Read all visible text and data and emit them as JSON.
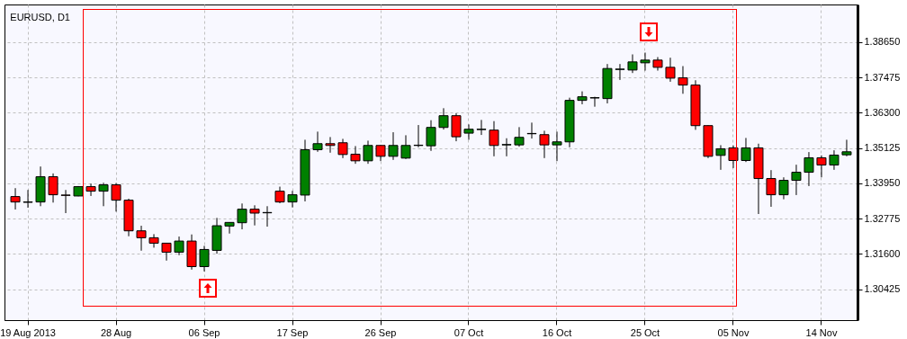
{
  "chart_data": {
    "type": "candlestick",
    "title": "EURUSD, D1",
    "categories": [
      null,
      "19 Aug 2013",
      null,
      null,
      null,
      null,
      null,
      null,
      "28 Aug",
      null,
      null,
      null,
      null,
      null,
      null,
      "06 Sep",
      null,
      null,
      null,
      null,
      null,
      null,
      "17 Sep",
      null,
      null,
      null,
      null,
      null,
      null,
      "26 Sep",
      null,
      null,
      null,
      null,
      null,
      null,
      "07 Oct",
      null,
      null,
      null,
      null,
      null,
      null,
      "16 Oct",
      null,
      null,
      null,
      null,
      null,
      null,
      "25 Oct",
      null,
      null,
      null,
      null,
      null,
      null,
      "05 Nov",
      null,
      null,
      null,
      null,
      null,
      null,
      "14 Nov",
      null,
      null
    ],
    "ohlc": [
      [
        1.3351,
        1.3379,
        1.3308,
        1.3333
      ],
      [
        1.3332,
        1.3373,
        1.3314,
        1.3333
      ],
      [
        1.3333,
        1.3451,
        1.3319,
        1.3417
      ],
      [
        1.3417,
        1.3428,
        1.3331,
        1.3357
      ],
      [
        1.3356,
        1.3373,
        1.3296,
        1.3355
      ],
      [
        1.3353,
        1.3386,
        1.3352,
        1.3384
      ],
      [
        1.3384,
        1.3394,
        1.3353,
        1.3369
      ],
      [
        1.3369,
        1.3397,
        1.3319,
        1.339
      ],
      [
        1.339,
        1.3396,
        1.3301,
        1.3339
      ],
      [
        1.3339,
        1.3344,
        1.3219,
        1.3237
      ],
      [
        1.3237,
        1.3254,
        1.3171,
        1.3214
      ],
      [
        1.3214,
        1.3226,
        1.3181,
        1.3196
      ],
      [
        1.3196,
        1.3197,
        1.3138,
        1.3166
      ],
      [
        1.3166,
        1.3218,
        1.3156,
        1.3203
      ],
      [
        1.3203,
        1.3225,
        1.3108,
        1.3118
      ],
      [
        1.3118,
        1.3187,
        1.3102,
        1.3175
      ],
      [
        1.3172,
        1.328,
        1.3161,
        1.3254
      ],
      [
        1.3253,
        1.3266,
        1.3228,
        1.3265
      ],
      [
        1.3264,
        1.3328,
        1.3242,
        1.3309
      ],
      [
        1.3309,
        1.3322,
        1.3255,
        1.3296
      ],
      [
        1.3297,
        1.3319,
        1.3251,
        1.3298
      ],
      [
        1.3369,
        1.3384,
        1.3329,
        1.3333
      ],
      [
        1.3333,
        1.337,
        1.3315,
        1.3357
      ],
      [
        1.3356,
        1.354,
        1.3335,
        1.3507
      ],
      [
        1.3507,
        1.3567,
        1.35,
        1.3527
      ],
      [
        1.3527,
        1.3549,
        1.3497,
        1.3521
      ],
      [
        1.353,
        1.3543,
        1.3479,
        1.3491
      ],
      [
        1.3492,
        1.3519,
        1.346,
        1.347
      ],
      [
        1.347,
        1.3537,
        1.346,
        1.3521
      ],
      [
        1.3521,
        1.3522,
        1.3469,
        1.3485
      ],
      [
        1.3485,
        1.3565,
        1.3473,
        1.3521
      ],
      [
        1.3479,
        1.3555,
        1.3476,
        1.3521
      ],
      [
        1.3521,
        1.3589,
        1.3515,
        1.3522
      ],
      [
        1.352,
        1.3605,
        1.3503,
        1.3581
      ],
      [
        1.3581,
        1.3645,
        1.3574,
        1.362
      ],
      [
        1.362,
        1.3628,
        1.3535,
        1.355
      ],
      [
        1.3562,
        1.3591,
        1.354,
        1.3575
      ],
      [
        1.3574,
        1.3606,
        1.3556,
        1.3575
      ],
      [
        1.3572,
        1.3602,
        1.3485,
        1.3521
      ],
      [
        1.3523,
        1.3545,
        1.3485,
        1.3524
      ],
      [
        1.3523,
        1.3582,
        1.3517,
        1.3548
      ],
      [
        1.356,
        1.3597,
        1.3544,
        1.3561
      ],
      [
        1.3557,
        1.357,
        1.3479,
        1.3523
      ],
      [
        1.3523,
        1.3567,
        1.3469,
        1.3533
      ],
      [
        1.3533,
        1.368,
        1.3515,
        1.3671
      ],
      [
        1.3671,
        1.3701,
        1.3658,
        1.3683
      ],
      [
        1.3679,
        1.3683,
        1.365,
        1.368
      ],
      [
        1.3677,
        1.3792,
        1.3661,
        1.3777
      ],
      [
        1.3774,
        1.3792,
        1.3739,
        1.3775
      ],
      [
        1.3772,
        1.3824,
        1.3762,
        1.3799
      ],
      [
        1.3796,
        1.383,
        1.377,
        1.3805
      ],
      [
        1.3805,
        1.3815,
        1.377,
        1.3781
      ],
      [
        1.3781,
        1.3813,
        1.3733,
        1.3745
      ],
      [
        1.3746,
        1.3785,
        1.3693,
        1.3722
      ],
      [
        1.3722,
        1.3738,
        1.3573,
        1.3587
      ],
      [
        1.3587,
        1.3588,
        1.3479,
        1.3485
      ],
      [
        1.3488,
        1.3522,
        1.344,
        1.351
      ],
      [
        1.3513,
        1.3521,
        1.3446,
        1.3471
      ],
      [
        1.3471,
        1.3546,
        1.3466,
        1.3513
      ],
      [
        1.3513,
        1.3527,
        1.3293,
        1.3411
      ],
      [
        1.3411,
        1.3439,
        1.3317,
        1.3357
      ],
      [
        1.3357,
        1.3415,
        1.3342,
        1.3405
      ],
      [
        1.3405,
        1.3457,
        1.3356,
        1.3432
      ],
      [
        1.3432,
        1.3499,
        1.3386,
        1.348
      ],
      [
        1.348,
        1.3488,
        1.3415,
        1.3456
      ],
      [
        1.3456,
        1.3505,
        1.344,
        1.3489
      ],
      [
        1.349,
        1.354,
        1.3485,
        1.35
      ]
    ],
    "colors": [
      "#ff0000",
      "#008000",
      "#008000",
      "#ff0000",
      "#ff0000",
      "#008000",
      "#ff0000",
      "#008000",
      "#ff0000",
      "#ff0000",
      "#ff0000",
      "#ff0000",
      "#ff0000",
      "#008000",
      "#ff0000",
      "#008000",
      "#008000",
      "#008000",
      "#008000",
      "#ff0000",
      "#008000",
      "#ff0000",
      "#008000",
      "#008000",
      "#008000",
      "#ff0000",
      "#ff0000",
      "#ff0000",
      "#008000",
      "#ff0000",
      "#008000",
      "#008000",
      "#008000",
      "#008000",
      "#008000",
      "#ff0000",
      "#008000",
      "#008000",
      "#ff0000",
      "#008000",
      "#008000",
      "#008000",
      "#ff0000",
      "#008000",
      "#008000",
      "#008000",
      "#008000",
      "#008000",
      "#008000",
      "#008000",
      "#008000",
      "#ff0000",
      "#ff0000",
      "#ff0000",
      "#ff0000",
      "#ff0000",
      "#008000",
      "#ff0000",
      "#008000",
      "#ff0000",
      "#ff0000",
      "#008000",
      "#008000",
      "#008000",
      "#ff0000",
      "#008000",
      "#008000"
    ],
    "ylim": [
      1.294,
      1.399
    ],
    "yticks": [
      {
        "value": 1.30425,
        "label": "1.30425"
      },
      {
        "value": 1.316,
        "label": "1.31600"
      },
      {
        "value": 1.32775,
        "label": "1.32775"
      },
      {
        "value": 1.3395,
        "label": "1.33950"
      },
      {
        "value": 1.35125,
        "label": "1.35125"
      },
      {
        "value": 1.363,
        "label": "1.36300"
      },
      {
        "value": 1.37475,
        "label": "1.37475"
      },
      {
        "value": 1.3865,
        "label": "1.38650"
      }
    ],
    "grid": true
  }
}
